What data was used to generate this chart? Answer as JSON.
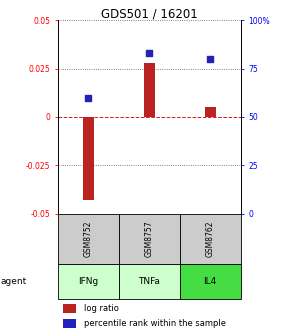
{
  "title": "GDS501 / 16201",
  "samples": [
    "GSM8752",
    "GSM8757",
    "GSM8762"
  ],
  "agents": [
    "IFNg",
    "TNFa",
    "IL4"
  ],
  "log_ratios": [
    -0.043,
    0.028,
    0.005
  ],
  "percentile_ranks": [
    60,
    83,
    80
  ],
  "ylim_left": [
    -0.05,
    0.05
  ],
  "ylim_right": [
    0,
    100
  ],
  "yticks_left": [
    -0.05,
    -0.025,
    0,
    0.025,
    0.05
  ],
  "yticks_right": [
    0,
    25,
    50,
    75,
    100
  ],
  "ytick_labels_left": [
    "-0.05",
    "-0.025",
    "0",
    "0.025",
    "0.05"
  ],
  "ytick_labels_right": [
    "0",
    "25",
    "50",
    "75",
    "100%"
  ],
  "bar_color_red": "#bb2222",
  "bar_color_blue": "#2222bb",
  "sample_bg_color": "#cccccc",
  "agent_bg_colors": [
    "#ccffcc",
    "#ccffcc",
    "#44dd44"
  ],
  "legend_red": "log ratio",
  "legend_blue": "percentile rank within the sample"
}
